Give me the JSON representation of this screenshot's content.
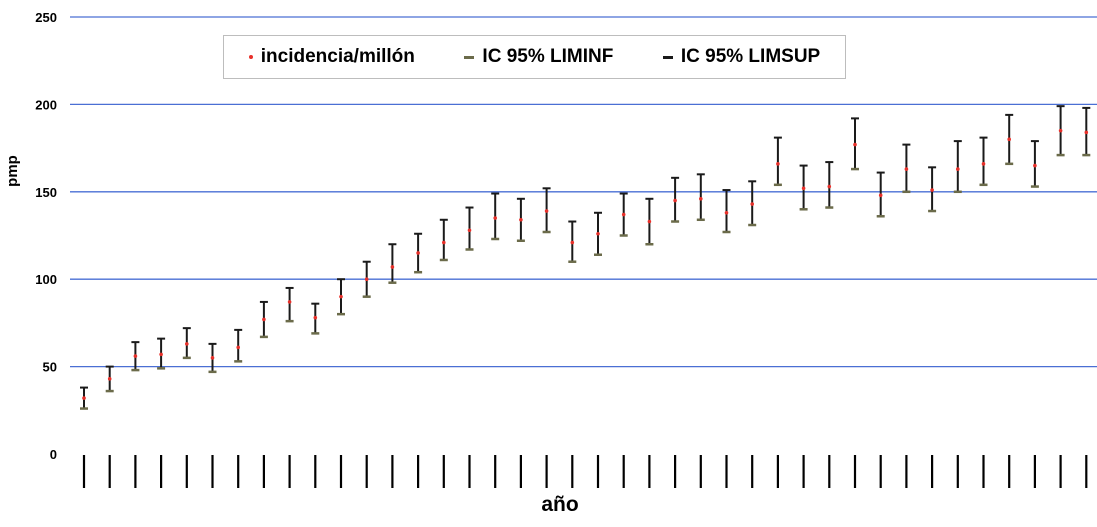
{
  "chart_data": {
    "type": "scatter",
    "title": "",
    "xlabel": "año",
    "ylabel": "pmp",
    "ylim": [
      0,
      250
    ],
    "yticks": [
      0,
      50,
      100,
      150,
      200,
      250
    ],
    "grid": true,
    "legend_position": "top-center",
    "colors": {
      "point": "#e8302a",
      "liminf": "#6b6b4a",
      "limsup": "#1a1a1a",
      "grid": "#4a6fd4"
    },
    "series": [
      {
        "name": "incidencia/millón",
        "values": [
          32,
          43,
          56,
          57,
          63,
          55,
          61,
          77,
          87,
          78,
          90,
          100,
          107,
          115,
          121,
          128,
          135,
          134,
          139,
          121,
          126,
          137,
          133,
          145,
          146,
          138,
          143,
          166,
          152,
          153,
          177,
          148,
          163,
          151,
          163,
          166,
          180,
          165,
          185,
          184
        ]
      },
      {
        "name": "IC 95% LIMINF",
        "values": [
          26,
          36,
          48,
          49,
          55,
          47,
          53,
          67,
          76,
          69,
          80,
          90,
          98,
          104,
          111,
          117,
          123,
          122,
          127,
          110,
          114,
          125,
          120,
          133,
          134,
          127,
          131,
          154,
          140,
          141,
          163,
          136,
          150,
          139,
          150,
          154,
          166,
          153,
          171,
          171
        ]
      },
      {
        "name": "IC 95% LIMSUP",
        "values": [
          38,
          50,
          64,
          66,
          72,
          63,
          71,
          87,
          95,
          86,
          100,
          110,
          120,
          126,
          134,
          141,
          149,
          146,
          152,
          133,
          138,
          149,
          146,
          158,
          160,
          151,
          156,
          181,
          165,
          167,
          192,
          161,
          177,
          164,
          179,
          181,
          194,
          179,
          199,
          198
        ]
      }
    ]
  }
}
